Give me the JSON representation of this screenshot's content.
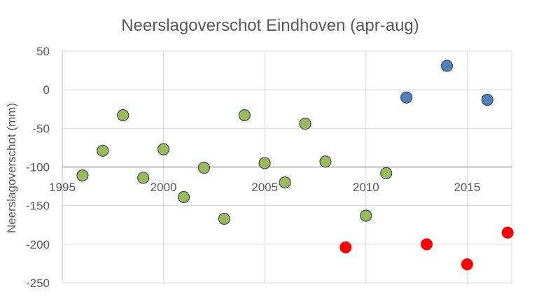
{
  "chart_data": {
    "type": "scatter",
    "title": "Neerslagoverschot Eindhoven (apr-aug)",
    "xlabel": "",
    "ylabel": "Neerslagoverschot (mm)",
    "xlim": [
      1995,
      2017.2
    ],
    "ylim": [
      -250,
      50
    ],
    "x_ticks": [
      "1995",
      "2000",
      "2005",
      "2010",
      "2015"
    ],
    "y_ticks": [
      "50",
      "0",
      "-50",
      "-100",
      "-150",
      "-200",
      "-250"
    ],
    "grid": true,
    "legend": "none",
    "colors": {
      "green": "#9bbb59",
      "blue": "#4f81bd",
      "red": "#ff0000"
    },
    "series": [
      {
        "color": "#9bbb59",
        "points": [
          {
            "x": 1996,
            "y": -111
          },
          {
            "x": 1997,
            "y": -79
          },
          {
            "x": 1998,
            "y": -33
          },
          {
            "x": 1999,
            "y": -114
          },
          {
            "x": 2000,
            "y": -77
          },
          {
            "x": 2001,
            "y": -139
          },
          {
            "x": 2002,
            "y": -101
          },
          {
            "x": 2003,
            "y": -167
          },
          {
            "x": 2004,
            "y": -33
          },
          {
            "x": 2005,
            "y": -95
          },
          {
            "x": 2006,
            "y": -120
          },
          {
            "x": 2007,
            "y": -44
          },
          {
            "x": 2008,
            "y": -93
          },
          {
            "x": 2010,
            "y": -163
          },
          {
            "x": 2011,
            "y": -108
          }
        ]
      },
      {
        "color": "#4f81bd",
        "points": [
          {
            "x": 2012,
            "y": -10
          },
          {
            "x": 2014,
            "y": 31
          },
          {
            "x": 2016,
            "y": -13
          }
        ]
      },
      {
        "color": "#ff0000",
        "points": [
          {
            "x": 2009,
            "y": -204
          },
          {
            "x": 2013,
            "y": -200
          },
          {
            "x": 2015,
            "y": -226
          },
          {
            "x": 2017,
            "y": -185
          }
        ]
      }
    ]
  }
}
